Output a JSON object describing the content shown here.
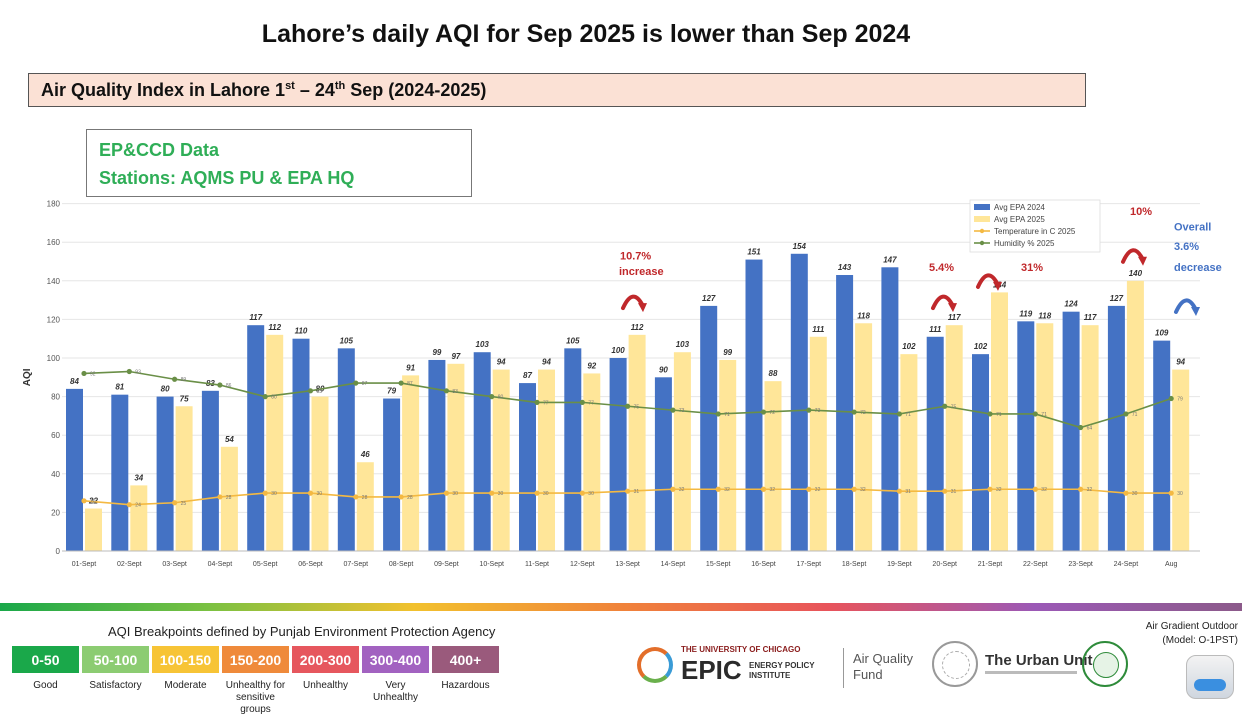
{
  "page": {
    "title": "Lahore’s daily AQI for Sep 2025 is lower than Sep 2024",
    "subtitle_pre": "Air Quality Index in Lahore 1",
    "subtitle_sup1": "st",
    "subtitle_mid": " – 24",
    "subtitle_sup2": "th",
    "subtitle_post": " Sep (2024-2025)",
    "source_line1": "EP&CCD Data",
    "source_line2": "Stations:  AQMS PU & EPA HQ"
  },
  "chart_data": {
    "type": "bar",
    "ylabel": "AQI",
    "ylim": [
      0,
      180
    ],
    "yticks": [
      0,
      20,
      40,
      60,
      80,
      100,
      120,
      140,
      160,
      180
    ],
    "categories": [
      "01-Sept",
      "02-Sept",
      "03-Sept",
      "04-Sept",
      "05-Sept",
      "06-Sept",
      "07-Sept",
      "08-Sept",
      "09-Sept",
      "10-Sept",
      "11-Sept",
      "12-Sept",
      "13-Sept",
      "14-Sept",
      "15-Sept",
      "16-Sept",
      "17-Sept",
      "18-Sept",
      "19-Sept",
      "20-Sept",
      "21-Sept",
      "22-Sept",
      "23-Sept",
      "24-Sept",
      "Aug"
    ],
    "series": [
      {
        "name": "Avg EPA 2024",
        "kind": "bar",
        "color": "#4472c4",
        "values": [
          84,
          81,
          80,
          83,
          117,
          110,
          105,
          79,
          99,
          103,
          87,
          105,
          100,
          90,
          127,
          151,
          154,
          143,
          147,
          111,
          102,
          119,
          124,
          127,
          109
        ]
      },
      {
        "name": "Avg EPA 2025",
        "kind": "bar",
        "color": "#ffe699",
        "values": [
          22,
          34,
          75,
          54,
          112,
          80,
          46,
          91,
          97,
          94,
          94,
          92,
          112,
          103,
          99,
          88,
          111,
          118,
          102,
          117,
          134,
          118,
          117,
          140,
          94
        ]
      },
      {
        "name": "Temperature in C 2025",
        "kind": "line",
        "color": "#f4b942",
        "values": [
          26,
          24,
          25,
          28,
          30,
          30,
          28,
          28,
          30,
          30,
          30,
          30,
          31,
          32,
          32,
          32,
          32,
          32,
          31,
          31,
          32,
          32,
          32,
          30,
          30
        ]
      },
      {
        "name": "Humidity % 2025",
        "kind": "line",
        "color": "#6a8f47",
        "values": [
          92,
          93,
          89,
          86,
          80,
          83,
          87,
          87,
          83,
          80,
          77,
          77,
          75,
          73,
          71,
          72,
          73,
          72,
          71,
          75,
          71,
          71,
          64,
          71,
          79
        ]
      }
    ],
    "annotations": {
      "a1": "10.7%",
      "a1b": "increase",
      "a2": "5.4%",
      "a3": "31%",
      "a4": "10%",
      "a5": "Overall",
      "a5b": "3.6%",
      "a5c": "decrease"
    }
  },
  "breakpoints": {
    "title": "AQI Breakpoints defined by Punjab Environment Protection Agency",
    "items": [
      {
        "range": "0-50",
        "label": "Good",
        "color": "#1aa84a"
      },
      {
        "range": "50-100",
        "label": "Satisfactory",
        "color": "#8ccc72"
      },
      {
        "range": "100-150",
        "label": "Moderate",
        "color": "#f7c436"
      },
      {
        "range": "150-200",
        "label": "Unhealthy for sensitive groups",
        "color": "#ef8a3b"
      },
      {
        "range": "200-300",
        "label": "Unhealthy",
        "color": "#e6575e"
      },
      {
        "range": "300-400",
        "label": "Very Unhealthy",
        "color": "#a262c0"
      },
      {
        "range": "400+",
        "label": "Hazardous",
        "color": "#9a5a7c"
      }
    ]
  },
  "logos": {
    "epic_top": "THE UNIVERSITY OF CHICAGO",
    "epic_big": "EPIC",
    "epic_sub1": "ENERGY POLICY",
    "epic_sub2": "INSTITUTE",
    "aqf1": "Air Quality",
    "aqf2": "Fund",
    "urban": "The Urban Unit",
    "ag1": "Air Gradient Outdoor",
    "ag2": "(Model: O-1PST)"
  }
}
